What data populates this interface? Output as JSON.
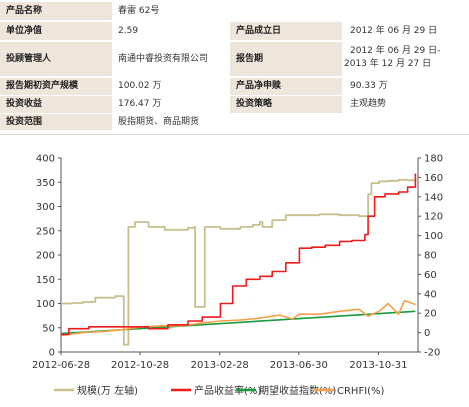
{
  "info": {
    "rows": [
      {
        "k1": "产品名称",
        "v1": "春雷 62号",
        "k2": "",
        "v2": ""
      },
      {
        "k1": "单位净值",
        "v1": "2.59",
        "k2": "产品成立日",
        "v2": "2012 年 06 月 29 日"
      },
      {
        "k1": "投顾管理人",
        "v1": "南通中睿投资有限公司",
        "k2": "报告期",
        "v2": "2012 年 06 月 29 日-",
        "v2b": "2013 年 12 月 27 日"
      },
      {
        "k1": "报告期初资产规模",
        "v1": "100.02 万",
        "k2": "产品净申赎",
        "v2": "90.33 万"
      },
      {
        "k1": "投资收益",
        "v1": "176.47 万",
        "k2": "投资策略",
        "v2": "主观趋势"
      },
      {
        "k1": "投资范围",
        "v1": "股指期货、商品期货",
        "k2": "",
        "v2": ""
      }
    ]
  },
  "colors": {
    "label_bg": "#efe6db",
    "scale": "#c8bf8f",
    "return": "#ee1b1b",
    "expected": "#1a9a3e",
    "crhfi": "#f5a04a"
  },
  "chart_data": {
    "type": "line",
    "x_ticks": [
      "2012-06-28",
      "2012-10-28",
      "2013-02-28",
      "2013-06-30",
      "2013-10-31"
    ],
    "x_range": [
      "2012-06-28",
      "2013-12-31"
    ],
    "y_left": {
      "ticks": [
        0,
        50,
        100,
        150,
        200,
        250,
        300,
        350,
        400
      ],
      "range": [
        0,
        400
      ]
    },
    "y_right": {
      "ticks": [
        -20,
        0,
        20,
        40,
        60,
        80,
        100,
        120,
        140,
        160,
        180
      ],
      "range": [
        -20,
        180
      ]
    },
    "series": [
      {
        "name": "规模(万 左轴)",
        "axis": "left",
        "color_key": "scale",
        "x": [
          "2012-06-28",
          "2012-07-15",
          "2012-08-01",
          "2012-08-20",
          "2012-09-10",
          "2012-09-20",
          "2012-10-01",
          "2012-10-03",
          "2012-10-10",
          "2012-10-20",
          "2012-11-10",
          "2012-12-05",
          "2013-01-10",
          "2013-01-20",
          "2013-01-21",
          "2013-02-02",
          "2013-02-05",
          "2013-03-01",
          "2013-04-01",
          "2013-04-20",
          "2013-05-01",
          "2013-05-05",
          "2013-05-20",
          "2013-06-10",
          "2013-07-01",
          "2013-08-01",
          "2013-09-01",
          "2013-10-01",
          "2013-10-10",
          "2013-10-15",
          "2013-10-20",
          "2013-11-01",
          "2013-11-15",
          "2013-12-01",
          "2013-12-15",
          "2013-12-27"
        ],
        "y": [
          100,
          101,
          103,
          112,
          112,
          115,
          115,
          15,
          258,
          268,
          258,
          252,
          256,
          258,
          93,
          93,
          258,
          254,
          258,
          262,
          268,
          258,
          272,
          282,
          282,
          284,
          282,
          280,
          280,
          325,
          348,
          352,
          353,
          355,
          354,
          357
        ]
      },
      {
        "name": "产品收益率(%)",
        "axis": "right",
        "color_key": "return",
        "x": [
          "2012-06-28",
          "2012-07-10",
          "2012-08-10",
          "2012-09-10",
          "2012-10-10",
          "2012-11-10",
          "2012-12-10",
          "2013-01-10",
          "2013-02-01",
          "2013-03-01",
          "2013-03-20",
          "2013-04-10",
          "2013-05-01",
          "2013-05-20",
          "2013-06-10",
          "2013-07-01",
          "2013-07-20",
          "2013-08-10",
          "2013-09-01",
          "2013-09-20",
          "2013-10-10",
          "2013-10-15",
          "2013-10-25",
          "2013-11-10",
          "2013-12-01",
          "2013-12-15",
          "2013-12-27"
        ],
        "y": [
          -2,
          4,
          6,
          6,
          6,
          4,
          8,
          12,
          16,
          30,
          48,
          55,
          58,
          63,
          72,
          87,
          88,
          90,
          94,
          95,
          101,
          120,
          140,
          143,
          145,
          150,
          164
        ]
      },
      {
        "name": "期望收益指数(%)",
        "axis": "right",
        "color_key": "expected",
        "x": [
          "2012-06-28",
          "2013-12-27"
        ],
        "y": [
          -1,
          22
        ]
      },
      {
        "name": "CRHFI(%)",
        "axis": "right",
        "color_key": "crhfi",
        "x": [
          "2012-06-28",
          "2012-08-01",
          "2012-09-01",
          "2012-10-01",
          "2012-11-01",
          "2012-12-01",
          "2013-01-01",
          "2013-02-01",
          "2013-03-01",
          "2013-04-01",
          "2013-05-01",
          "2013-06-01",
          "2013-06-20",
          "2013-07-01",
          "2013-08-01",
          "2013-09-01",
          "2013-10-01",
          "2013-10-15",
          "2013-11-01",
          "2013-11-15",
          "2013-12-01",
          "2013-12-10",
          "2013-12-27"
        ],
        "y": [
          -3,
          0,
          1,
          3,
          6,
          7,
          7,
          10,
          12,
          13,
          15,
          18,
          14,
          19,
          19,
          22,
          24,
          17,
          22,
          30,
          19,
          33,
          29
        ]
      }
    ],
    "legend_position": "bottom"
  }
}
